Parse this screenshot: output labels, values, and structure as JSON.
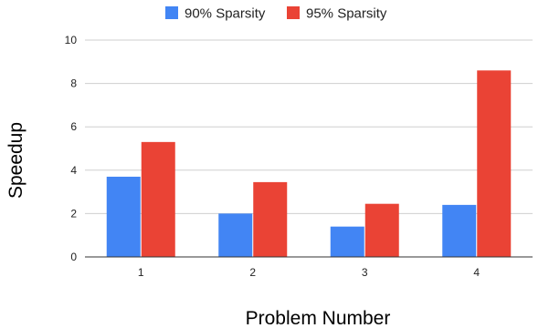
{
  "chart_data": {
    "type": "bar",
    "title": "",
    "xlabel": "Problem Number",
    "ylabel": "Speedup",
    "categories": [
      "1",
      "2",
      "3",
      "4"
    ],
    "series": [
      {
        "name": "90% Sparsity",
        "values": [
          3.7,
          2.0,
          1.4,
          2.4
        ],
        "color": "#4285f4"
      },
      {
        "name": "95% Sparsity",
        "values": [
          5.3,
          3.45,
          2.45,
          8.6
        ],
        "color": "#ea4335"
      }
    ],
    "ylim": [
      0,
      10
    ],
    "yticks": [
      "0",
      "2",
      "4",
      "6",
      "8",
      "10"
    ],
    "grid": true,
    "legend": "top-center"
  }
}
